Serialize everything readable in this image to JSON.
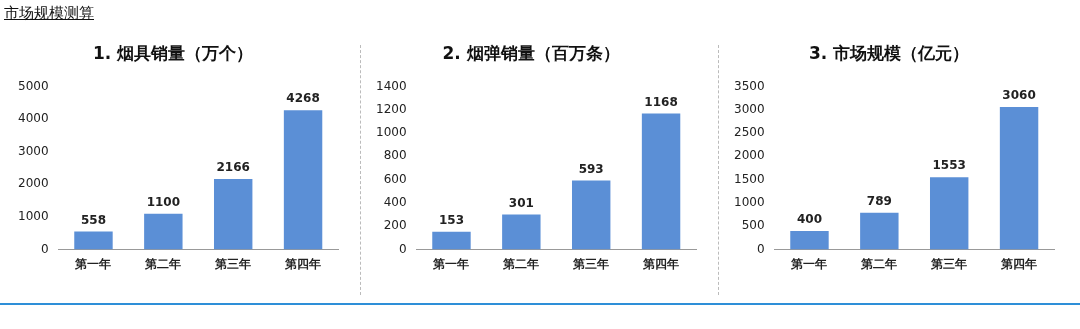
{
  "chart_data": [
    {
      "type": "bar",
      "title": "1. 烟具销量（万个）",
      "annotations": [
        "市场规模测算"
      ],
      "categories": [
        "第一年",
        "第二年",
        "第三年",
        "第四年"
      ],
      "values": [
        558,
        1100,
        2166,
        4268
      ],
      "color": "#5b8fd6",
      "ylim": [
        0,
        5000
      ],
      "yticks": [
        0,
        1000,
        2000,
        3000,
        4000,
        5000
      ],
      "data_labels": true,
      "grid": false,
      "legend": false
    },
    {
      "type": "bar",
      "title": "2. 烟弹销量（百万条）",
      "categories": [
        "第一年",
        "第二年",
        "第三年",
        "第四年"
      ],
      "values": [
        153,
        301,
        593,
        1168
      ],
      "color": "#5b8fd6",
      "ylim": [
        0,
        1400
      ],
      "yticks": [
        0,
        200,
        400,
        600,
        800,
        1000,
        1200,
        1400
      ],
      "data_labels": true,
      "grid": false,
      "legend": false
    },
    {
      "type": "bar",
      "title": "3. 市场规模（亿元）",
      "categories": [
        "第一年",
        "第二年",
        "第三年",
        "第四年"
      ],
      "values": [
        400,
        789,
        1553,
        3060
      ],
      "color": "#5b8fd6",
      "ylim": [
        0,
        3500
      ],
      "yticks": [
        0,
        500,
        1000,
        1500,
        2000,
        2500,
        3000,
        3500
      ],
      "data_labels": true,
      "grid": false,
      "legend": false
    }
  ]
}
